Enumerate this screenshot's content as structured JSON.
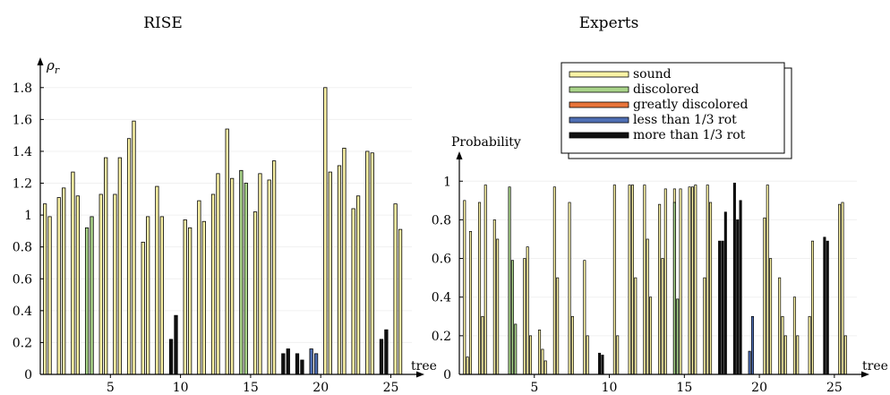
{
  "chart_data": [
    {
      "type": "bar",
      "title": "RISE",
      "ylabel": "ρ_r",
      "ylabel_main": "ρ",
      "ylabel_sub": "r",
      "xlabel": "tree",
      "ylim": [
        0,
        1.9
      ],
      "yticks": [
        0,
        0.2,
        0.4,
        0.6,
        0.8,
        1,
        1.2,
        1.4,
        1.6,
        1.8
      ],
      "ytick_labels": [
        "0",
        "0.2",
        "0.4",
        "0.6",
        "0.8",
        "1",
        "1.2",
        "1.4",
        "1.6",
        "1.8"
      ],
      "xlim": [
        0,
        26.5
      ],
      "xticks": [
        5,
        10,
        15,
        20,
        25
      ],
      "xtick_labels": [
        "5",
        "10",
        "15",
        "20",
        "25"
      ],
      "category_keys": [
        "sound",
        "discolored",
        "greatly_discolored",
        "less_third_rot",
        "more_third_rot"
      ],
      "trees": [
        {
          "tree": 1,
          "values": [
            1.07,
            0.99
          ],
          "category": "sound"
        },
        {
          "tree": 2,
          "values": [
            1.11,
            1.17
          ],
          "category": "sound"
        },
        {
          "tree": 3,
          "values": [
            1.27,
            1.12
          ],
          "category": "sound"
        },
        {
          "tree": 4,
          "values": [
            0.92,
            0.99
          ],
          "category": "discolored"
        },
        {
          "tree": 5,
          "values": [
            1.13,
            1.36
          ],
          "category": "sound"
        },
        {
          "tree": 6,
          "values": [
            1.13,
            1.36
          ],
          "category": "sound"
        },
        {
          "tree": 7,
          "values": [
            1.48,
            1.59
          ],
          "category": "sound"
        },
        {
          "tree": 8,
          "values": [
            0.83,
            0.99
          ],
          "category": "sound"
        },
        {
          "tree": 9,
          "values": [
            1.18,
            0.99
          ],
          "category": "sound"
        },
        {
          "tree": 10,
          "values": [
            0.22,
            0.37
          ],
          "category": "more_third_rot"
        },
        {
          "tree": 11,
          "values": [
            0.97,
            0.92
          ],
          "category": "sound"
        },
        {
          "tree": 12,
          "values": [
            1.09,
            0.96
          ],
          "category": "sound"
        },
        {
          "tree": 13,
          "values": [
            1.13,
            1.26
          ],
          "category": "sound"
        },
        {
          "tree": 14,
          "values": [
            1.54,
            1.23
          ],
          "category": "sound"
        },
        {
          "tree": 15,
          "values": [
            1.28,
            1.2
          ],
          "category": "discolored"
        },
        {
          "tree": 16,
          "values": [
            1.02,
            1.26
          ],
          "category": "sound"
        },
        {
          "tree": 17,
          "values": [
            1.22,
            1.34
          ],
          "category": "sound"
        },
        {
          "tree": 18,
          "values": [
            0.13,
            0.16
          ],
          "category": "more_third_rot"
        },
        {
          "tree": 19,
          "values": [
            0.13,
            0.09
          ],
          "category": "more_third_rot"
        },
        {
          "tree": 20,
          "values": [
            0.16,
            0.13
          ],
          "category": "less_third_rot"
        },
        {
          "tree": 21,
          "values": [
            1.8,
            1.27
          ],
          "category": "sound"
        },
        {
          "tree": 22,
          "values": [
            1.31,
            1.42
          ],
          "category": "sound"
        },
        {
          "tree": 23,
          "values": [
            1.04,
            1.12
          ],
          "category": "sound"
        },
        {
          "tree": 24,
          "values": [
            1.4,
            1.39
          ],
          "category": "sound"
        },
        {
          "tree": 25,
          "values": [
            0.22,
            0.28
          ],
          "category": "more_third_rot"
        },
        {
          "tree": 26,
          "values": [
            1.07,
            0.91
          ],
          "category": "sound"
        }
      ]
    },
    {
      "type": "bar",
      "title": "Experts",
      "ylabel": "Probability",
      "xlabel": "tree",
      "ylim": [
        0,
        1.08
      ],
      "yticks": [
        0,
        0.2,
        0.4,
        0.6,
        0.8,
        1
      ],
      "ytick_labels": [
        "0",
        "0.2",
        "0.4",
        "0.6",
        "0.8",
        "1"
      ],
      "xlim": [
        0,
        26.5
      ],
      "xticks": [
        5,
        10,
        15,
        20,
        25
      ],
      "xtick_labels": [
        "5",
        "10",
        "15",
        "20",
        "25"
      ],
      "category_keys": [
        "sound",
        "discolored",
        "greatly_discolored",
        "less_third_rot",
        "more_third_rot"
      ],
      "trees": [
        {
          "tree": 1,
          "sound": [
            0.9,
            0.09,
            0.74
          ],
          "discolored": [
            0,
            0,
            0
          ],
          "greatly_discolored": [
            0,
            0,
            0
          ],
          "less_third_rot": [
            0,
            0,
            0
          ],
          "more_third_rot": [
            0,
            0,
            0
          ]
        },
        {
          "tree": 2,
          "sound": [
            0.89,
            0.3,
            0.98
          ],
          "discolored": [
            0,
            0,
            0
          ],
          "greatly_discolored": [
            0,
            0,
            0
          ],
          "less_third_rot": [
            0,
            0,
            0
          ],
          "more_third_rot": [
            0,
            0,
            0
          ]
        },
        {
          "tree": 3,
          "sound": [
            0.8,
            0.7,
            0
          ],
          "discolored": [
            0,
            0,
            0
          ],
          "greatly_discolored": [
            0,
            0,
            0
          ],
          "less_third_rot": [
            0,
            0,
            0
          ],
          "more_third_rot": [
            0,
            0,
            0
          ]
        },
        {
          "tree": 4,
          "sound": [
            0,
            0,
            0
          ],
          "discolored": [
            0.97,
            0.59,
            0.26
          ],
          "greatly_discolored": [
            0,
            0,
            0
          ],
          "less_third_rot": [
            0,
            0,
            0
          ],
          "more_third_rot": [
            0,
            0,
            0
          ]
        },
        {
          "tree": 5,
          "sound": [
            0.6,
            0.66,
            0.2
          ],
          "discolored": [
            0,
            0,
            0
          ],
          "greatly_discolored": [
            0,
            0,
            0
          ],
          "less_third_rot": [
            0,
            0,
            0
          ],
          "more_third_rot": [
            0,
            0,
            0
          ]
        },
        {
          "tree": 6,
          "sound": [
            0.23,
            0.13,
            0.07
          ],
          "discolored": [
            0,
            0,
            0
          ],
          "greatly_discolored": [
            0,
            0,
            0
          ],
          "less_third_rot": [
            0,
            0,
            0
          ],
          "more_third_rot": [
            0,
            0,
            0
          ]
        },
        {
          "tree": 7,
          "sound": [
            0.97,
            0.5,
            0
          ],
          "discolored": [
            0,
            0,
            0
          ],
          "greatly_discolored": [
            0,
            0,
            0
          ],
          "less_third_rot": [
            0,
            0,
            0
          ],
          "more_third_rot": [
            0,
            0,
            0
          ]
        },
        {
          "tree": 8,
          "sound": [
            0.89,
            0.3,
            0
          ],
          "discolored": [
            0,
            0,
            0
          ],
          "greatly_discolored": [
            0,
            0,
            0
          ],
          "less_third_rot": [
            0,
            0,
            0
          ],
          "more_third_rot": [
            0,
            0,
            0
          ]
        },
        {
          "tree": 9,
          "sound": [
            0.59,
            0.2,
            0
          ],
          "discolored": [
            0,
            0,
            0
          ],
          "greatly_discolored": [
            0,
            0,
            0
          ],
          "less_third_rot": [
            0,
            0,
            0
          ],
          "more_third_rot": [
            0,
            0,
            0
          ]
        },
        {
          "tree": 10,
          "sound": [
            0,
            0,
            0
          ],
          "discolored": [
            0,
            0,
            0
          ],
          "greatly_discolored": [
            0,
            0,
            0
          ],
          "less_third_rot": [
            0,
            0,
            0
          ],
          "more_third_rot": [
            0.11,
            0.1,
            0
          ]
        },
        {
          "tree": 11,
          "sound": [
            0.98,
            0.2,
            0
          ],
          "discolored": [
            0,
            0,
            0
          ],
          "greatly_discolored": [
            0,
            0,
            0
          ],
          "less_third_rot": [
            0,
            0,
            0
          ],
          "more_third_rot": [
            0,
            0,
            0
          ]
        },
        {
          "tree": 12,
          "sound": [
            0.98,
            0.98,
            0.5
          ],
          "discolored": [
            0,
            0,
            0
          ],
          "greatly_discolored": [
            0,
            0,
            0
          ],
          "less_third_rot": [
            0,
            0,
            0
          ],
          "more_third_rot": [
            0,
            0,
            0
          ]
        },
        {
          "tree": 13,
          "sound": [
            0.98,
            0.7,
            0.4
          ],
          "discolored": [
            0,
            0,
            0
          ],
          "greatly_discolored": [
            0,
            0,
            0
          ],
          "less_third_rot": [
            0,
            0,
            0
          ],
          "more_third_rot": [
            0,
            0,
            0
          ]
        },
        {
          "tree": 14,
          "sound": [
            0.88,
            0.6,
            0.96
          ],
          "discolored": [
            0,
            0,
            0
          ],
          "greatly_discolored": [
            0,
            0,
            0
          ],
          "less_third_rot": [
            0,
            0,
            0
          ],
          "more_third_rot": [
            0,
            0,
            0
          ]
        },
        {
          "tree": 15,
          "sound": [
            0.96,
            0,
            0.96
          ],
          "discolored": [
            0.89,
            0.39,
            0
          ],
          "greatly_discolored": [
            0,
            0,
            0
          ],
          "less_third_rot": [
            0,
            0,
            0
          ],
          "more_third_rot": [
            0,
            0,
            0
          ]
        },
        {
          "tree": 16,
          "sound": [
            0.97,
            0.97,
            0.98
          ],
          "discolored": [
            0,
            0,
            0
          ],
          "greatly_discolored": [
            0,
            0,
            0
          ],
          "less_third_rot": [
            0,
            0,
            0
          ],
          "more_third_rot": [
            0,
            0,
            0
          ]
        },
        {
          "tree": 17,
          "sound": [
            0.5,
            0.98,
            0.89
          ],
          "discolored": [
            0,
            0,
            0
          ],
          "greatly_discolored": [
            0,
            0,
            0
          ],
          "less_third_rot": [
            0,
            0,
            0
          ],
          "more_third_rot": [
            0,
            0,
            0
          ]
        },
        {
          "tree": 18,
          "sound": [
            0,
            0,
            0
          ],
          "discolored": [
            0,
            0,
            0
          ],
          "greatly_discolored": [
            0,
            0,
            0
          ],
          "less_third_rot": [
            0,
            0,
            0
          ],
          "more_third_rot": [
            0.69,
            0.69,
            0.84
          ]
        },
        {
          "tree": 19,
          "sound": [
            0,
            0,
            0
          ],
          "discolored": [
            0,
            0,
            0
          ],
          "greatly_discolored": [
            0,
            0,
            0
          ],
          "less_third_rot": [
            0,
            0,
            0
          ],
          "more_third_rot": [
            0.99,
            0.8,
            0.9
          ]
        },
        {
          "tree": 20,
          "sound": [
            0,
            0,
            0
          ],
          "discolored": [
            0,
            0,
            0
          ],
          "greatly_discolored": [
            0,
            0,
            0
          ],
          "less_third_rot": [
            0.12,
            0.3,
            0
          ],
          "more_third_rot": [
            0,
            0,
            0
          ]
        },
        {
          "tree": 21,
          "sound": [
            0.81,
            0.98,
            0.6
          ],
          "discolored": [
            0,
            0,
            0
          ],
          "greatly_discolored": [
            0,
            0,
            0
          ],
          "less_third_rot": [
            0,
            0,
            0
          ],
          "more_third_rot": [
            0,
            0,
            0
          ]
        },
        {
          "tree": 22,
          "sound": [
            0.5,
            0.3,
            0.2
          ],
          "discolored": [
            0,
            0,
            0
          ],
          "greatly_discolored": [
            0,
            0,
            0
          ],
          "less_third_rot": [
            0,
            0,
            0
          ],
          "more_third_rot": [
            0,
            0,
            0
          ]
        },
        {
          "tree": 23,
          "sound": [
            0.4,
            0.2,
            0
          ],
          "discolored": [
            0,
            0,
            0
          ],
          "greatly_discolored": [
            0,
            0,
            0
          ],
          "less_third_rot": [
            0,
            0,
            0
          ],
          "more_third_rot": [
            0,
            0,
            0
          ]
        },
        {
          "tree": 24,
          "sound": [
            0.3,
            0.69,
            0
          ],
          "discolored": [
            0,
            0,
            0
          ],
          "greatly_discolored": [
            0,
            0,
            0
          ],
          "less_third_rot": [
            0,
            0,
            0
          ],
          "more_third_rot": [
            0,
            0,
            0
          ]
        },
        {
          "tree": 25,
          "sound": [
            0,
            0,
            0
          ],
          "discolored": [
            0,
            0,
            0
          ],
          "greatly_discolored": [
            0,
            0,
            0
          ],
          "less_third_rot": [
            0,
            0,
            0
          ],
          "more_third_rot": [
            0.71,
            0.69,
            0
          ]
        },
        {
          "tree": 26,
          "sound": [
            0.88,
            0.89,
            0.2
          ],
          "discolored": [
            0,
            0,
            0
          ],
          "greatly_discolored": [
            0,
            0,
            0
          ],
          "less_third_rot": [
            0,
            0,
            0
          ],
          "more_third_rot": [
            0,
            0,
            0
          ]
        }
      ]
    }
  ],
  "legend": {
    "placement": "top-right of Experts panel",
    "items": [
      {
        "key": "sound",
        "label": "sound",
        "color": "#fbf3a6"
      },
      {
        "key": "discolored",
        "label": "discolored",
        "color": "#a9d48a"
      },
      {
        "key": "greatly_discolored",
        "label": "greatly discolored",
        "color": "#e8743a"
      },
      {
        "key": "less_third_rot",
        "label": "less than 1/3 rot",
        "color": "#4f6fb4"
      },
      {
        "key": "more_third_rot",
        "label": "more than 1/3 rot",
        "color": "#111111"
      }
    ]
  }
}
